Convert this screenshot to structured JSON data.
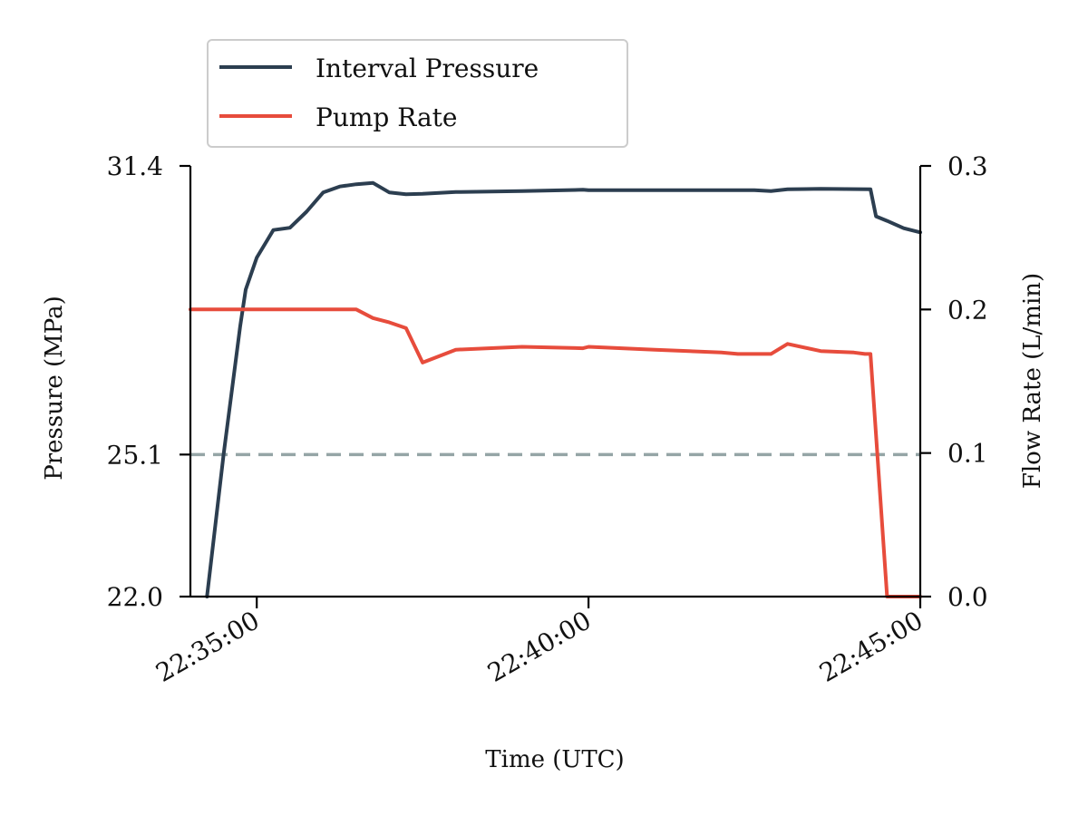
{
  "chart_data": {
    "type": "line",
    "xlabel": "Time (UTC)",
    "ylabel_left": "Pressure (MPa)",
    "ylabel_right": "Flow Rate (L/min)",
    "x_range": [
      "22:34:00",
      "22:45:00"
    ],
    "ylim_left": [
      22.0,
      31.4
    ],
    "ylim_right": [
      0.0,
      0.3
    ],
    "x_ticks": [
      "22:35:00",
      "22:40:00",
      "22:45:00"
    ],
    "y_left_ticks": [
      "22.0",
      "25.1",
      "31.4"
    ],
    "y_left_tick_values": [
      22.0,
      25.1,
      31.4
    ],
    "y_right_ticks": [
      "0.0",
      "0.1",
      "0.2",
      "0.3"
    ],
    "y_right_tick_values": [
      0.0,
      0.1,
      0.2,
      0.3
    ],
    "reference_line": {
      "axis": "left",
      "value": 25.1,
      "style": "dashed",
      "color": "#95a5a6"
    },
    "legend": {
      "placement": "top-left, above plot"
    },
    "grid": false,
    "series": [
      {
        "name": "Interval Pressure",
        "axis": "left",
        "color": "#2c3e50",
        "x": [
          "22:34:15",
          "22:34:30",
          "22:34:45",
          "22:34:50",
          "22:35:00",
          "22:35:10",
          "22:35:15",
          "22:35:30",
          "22:35:45",
          "22:36:00",
          "22:36:15",
          "22:36:30",
          "22:36:45",
          "22:37:00",
          "22:37:15",
          "22:37:30",
          "22:38:00",
          "22:39:00",
          "22:39:55",
          "22:40:00",
          "22:41:00",
          "22:42:00",
          "22:42:30",
          "22:42:45",
          "22:43:00",
          "22:43:30",
          "22:44:15",
          "22:44:20",
          "22:44:30",
          "22:44:45",
          "22:45:00"
        ],
        "values": [
          22.0,
          25.1,
          27.9,
          28.7,
          29.4,
          29.8,
          30.0,
          30.05,
          30.4,
          30.82,
          30.95,
          31.0,
          31.03,
          30.82,
          30.78,
          30.79,
          30.83,
          30.85,
          30.88,
          30.87,
          30.87,
          30.87,
          30.87,
          30.85,
          30.89,
          30.9,
          30.89,
          30.3,
          30.2,
          30.04,
          29.95
        ]
      },
      {
        "name": "Pump Rate",
        "axis": "right",
        "color": "#e74c3c",
        "x": [
          "22:34:00",
          "22:35:00",
          "22:36:00",
          "22:36:30",
          "22:36:45",
          "22:37:00",
          "22:37:15",
          "22:37:30",
          "22:38:00",
          "22:39:00",
          "22:39:55",
          "22:40:00",
          "22:41:00",
          "22:42:00",
          "22:42:15",
          "22:42:30",
          "22:42:45",
          "22:43:00",
          "22:43:30",
          "22:44:00",
          "22:44:10",
          "22:44:15",
          "22:44:30",
          "22:44:45",
          "22:45:00"
        ],
        "values": [
          0.2,
          0.2,
          0.2,
          0.2,
          0.194,
          0.191,
          0.187,
          0.163,
          0.172,
          0.174,
          0.173,
          0.174,
          0.172,
          0.17,
          0.169,
          0.169,
          0.169,
          0.176,
          0.171,
          0.17,
          0.169,
          0.169,
          0.0,
          0.0,
          0.0
        ]
      }
    ]
  }
}
